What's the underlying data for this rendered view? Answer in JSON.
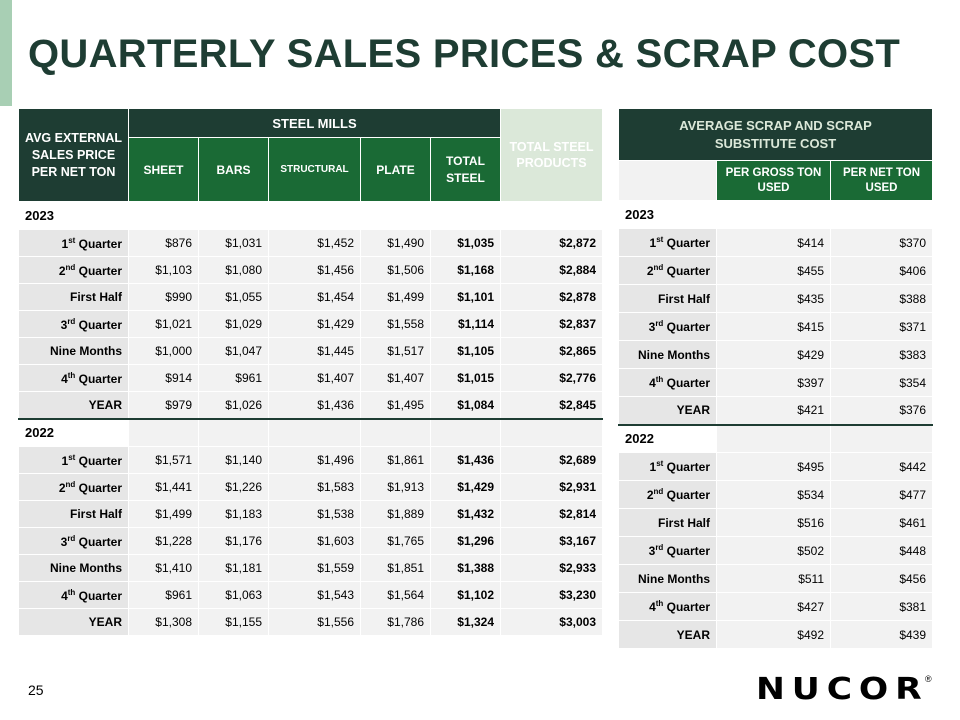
{
  "title": "QUARTERLY SALES PRICES & SCRAP COST",
  "page_number": "25",
  "logo": "NUCOR",
  "logo_reg": "®",
  "colors": {
    "dark_green": "#1e3d33",
    "green": "#1a6a35",
    "light_green": "#dbe8d9",
    "accent": "#a8cfb4"
  },
  "left": {
    "corner_header": "AVG EXTERNAL SALES PRICE PER NET TON",
    "group_header": "STEEL MILLS",
    "total_products_header": "TOTAL STEEL PRODUCTS",
    "columns": [
      "SHEET",
      "BARS",
      "STRUCTURAL",
      "PLATE",
      "TOTAL STEEL"
    ],
    "sections": [
      {
        "year": "2023",
        "rows": [
          {
            "q": "1",
            "sup": "st",
            "suffix": " Quarter",
            "values": [
              "$876",
              "$1,031",
              "$1,452",
              "$1,490",
              "$1,035",
              "$2,872"
            ]
          },
          {
            "q": "2",
            "sup": "nd",
            "suffix": " Quarter",
            "values": [
              "$1,103",
              "$1,080",
              "$1,456",
              "$1,506",
              "$1,168",
              "$2,884"
            ]
          },
          {
            "q": "First Half",
            "sup": "",
            "suffix": "",
            "values": [
              "$990",
              "$1,055",
              "$1,454",
              "$1,499",
              "$1,101",
              "$2,878"
            ]
          },
          {
            "q": "3",
            "sup": "rd",
            "suffix": " Quarter",
            "values": [
              "$1,021",
              "$1,029",
              "$1,429",
              "$1,558",
              "$1,114",
              "$2,837"
            ]
          },
          {
            "q": "Nine Months",
            "sup": "",
            "suffix": "",
            "values": [
              "$1,000",
              "$1,047",
              "$1,445",
              "$1,517",
              "$1,105",
              "$2,865"
            ]
          },
          {
            "q": "4",
            "sup": "th",
            "suffix": " Quarter",
            "values": [
              "$914",
              "$961",
              "$1,407",
              "$1,407",
              "$1,015",
              "$2,776"
            ]
          },
          {
            "q": "YEAR",
            "sup": "",
            "suffix": "",
            "values": [
              "$979",
              "$1,026",
              "$1,436",
              "$1,495",
              "$1,084",
              "$2,845"
            ]
          }
        ]
      },
      {
        "year": "2022",
        "rows": [
          {
            "q": "1",
            "sup": "st",
            "suffix": " Quarter",
            "values": [
              "$1,571",
              "$1,140",
              "$1,496",
              "$1,861",
              "$1,436",
              "$2,689"
            ]
          },
          {
            "q": "2",
            "sup": "nd",
            "suffix": " Quarter",
            "values": [
              "$1,441",
              "$1,226",
              "$1,583",
              "$1,913",
              "$1,429",
              "$2,931"
            ]
          },
          {
            "q": "First Half",
            "sup": "",
            "suffix": "",
            "values": [
              "$1,499",
              "$1,183",
              "$1,538",
              "$1,889",
              "$1,432",
              "$2,814"
            ]
          },
          {
            "q": "3",
            "sup": "rd",
            "suffix": " Quarter",
            "values": [
              "$1,228",
              "$1,176",
              "$1,603",
              "$1,765",
              "$1,296",
              "$3,167"
            ]
          },
          {
            "q": "Nine Months",
            "sup": "",
            "suffix": "",
            "values": [
              "$1,410",
              "$1,181",
              "$1,559",
              "$1,851",
              "$1,388",
              "$2,933"
            ]
          },
          {
            "q": "4",
            "sup": "th",
            "suffix": " Quarter",
            "values": [
              "$961",
              "$1,063",
              "$1,543",
              "$1,564",
              "$1,102",
              "$3,230"
            ]
          },
          {
            "q": "YEAR",
            "sup": "",
            "suffix": "",
            "values": [
              "$1,308",
              "$1,155",
              "$1,556",
              "$1,786",
              "$1,324",
              "$3,003"
            ]
          }
        ]
      }
    ]
  },
  "right": {
    "header": "AVERAGE SCRAP AND SCRAP SUBSTITUTE COST",
    "columns": [
      "PER GROSS TON USED",
      "PER NET TON USED"
    ],
    "sections": [
      {
        "year": "2023",
        "rows": [
          {
            "q": "1",
            "sup": "st",
            "suffix": " Quarter",
            "values": [
              "$414",
              "$370"
            ]
          },
          {
            "q": "2",
            "sup": "nd",
            "suffix": " Quarter",
            "values": [
              "$455",
              "$406"
            ]
          },
          {
            "q": "First Half",
            "sup": "",
            "suffix": "",
            "values": [
              "$435",
              "$388"
            ]
          },
          {
            "q": "3",
            "sup": "rd",
            "suffix": " Quarter",
            "values": [
              "$415",
              "$371"
            ]
          },
          {
            "q": "Nine Months",
            "sup": "",
            "suffix": "",
            "values": [
              "$429",
              "$383"
            ]
          },
          {
            "q": "4",
            "sup": "th",
            "suffix": " Quarter",
            "values": [
              "$397",
              "$354"
            ]
          },
          {
            "q": "YEAR",
            "sup": "",
            "suffix": "",
            "values": [
              "$421",
              "$376"
            ]
          }
        ]
      },
      {
        "year": "2022",
        "rows": [
          {
            "q": "1",
            "sup": "st",
            "suffix": " Quarter",
            "values": [
              "$495",
              "$442"
            ]
          },
          {
            "q": "2",
            "sup": "nd",
            "suffix": " Quarter",
            "values": [
              "$534",
              "$477"
            ]
          },
          {
            "q": "First Half",
            "sup": "",
            "suffix": "",
            "values": [
              "$516",
              "$461"
            ]
          },
          {
            "q": "3",
            "sup": "rd",
            "suffix": " Quarter",
            "values": [
              "$502",
              "$448"
            ]
          },
          {
            "q": "Nine Months",
            "sup": "",
            "suffix": "",
            "values": [
              "$511",
              "$456"
            ]
          },
          {
            "q": "4",
            "sup": "th",
            "suffix": " Quarter",
            "values": [
              "$427",
              "$381"
            ]
          },
          {
            "q": "YEAR",
            "sup": "",
            "suffix": "",
            "values": [
              "$492",
              "$439"
            ]
          }
        ]
      }
    ]
  }
}
